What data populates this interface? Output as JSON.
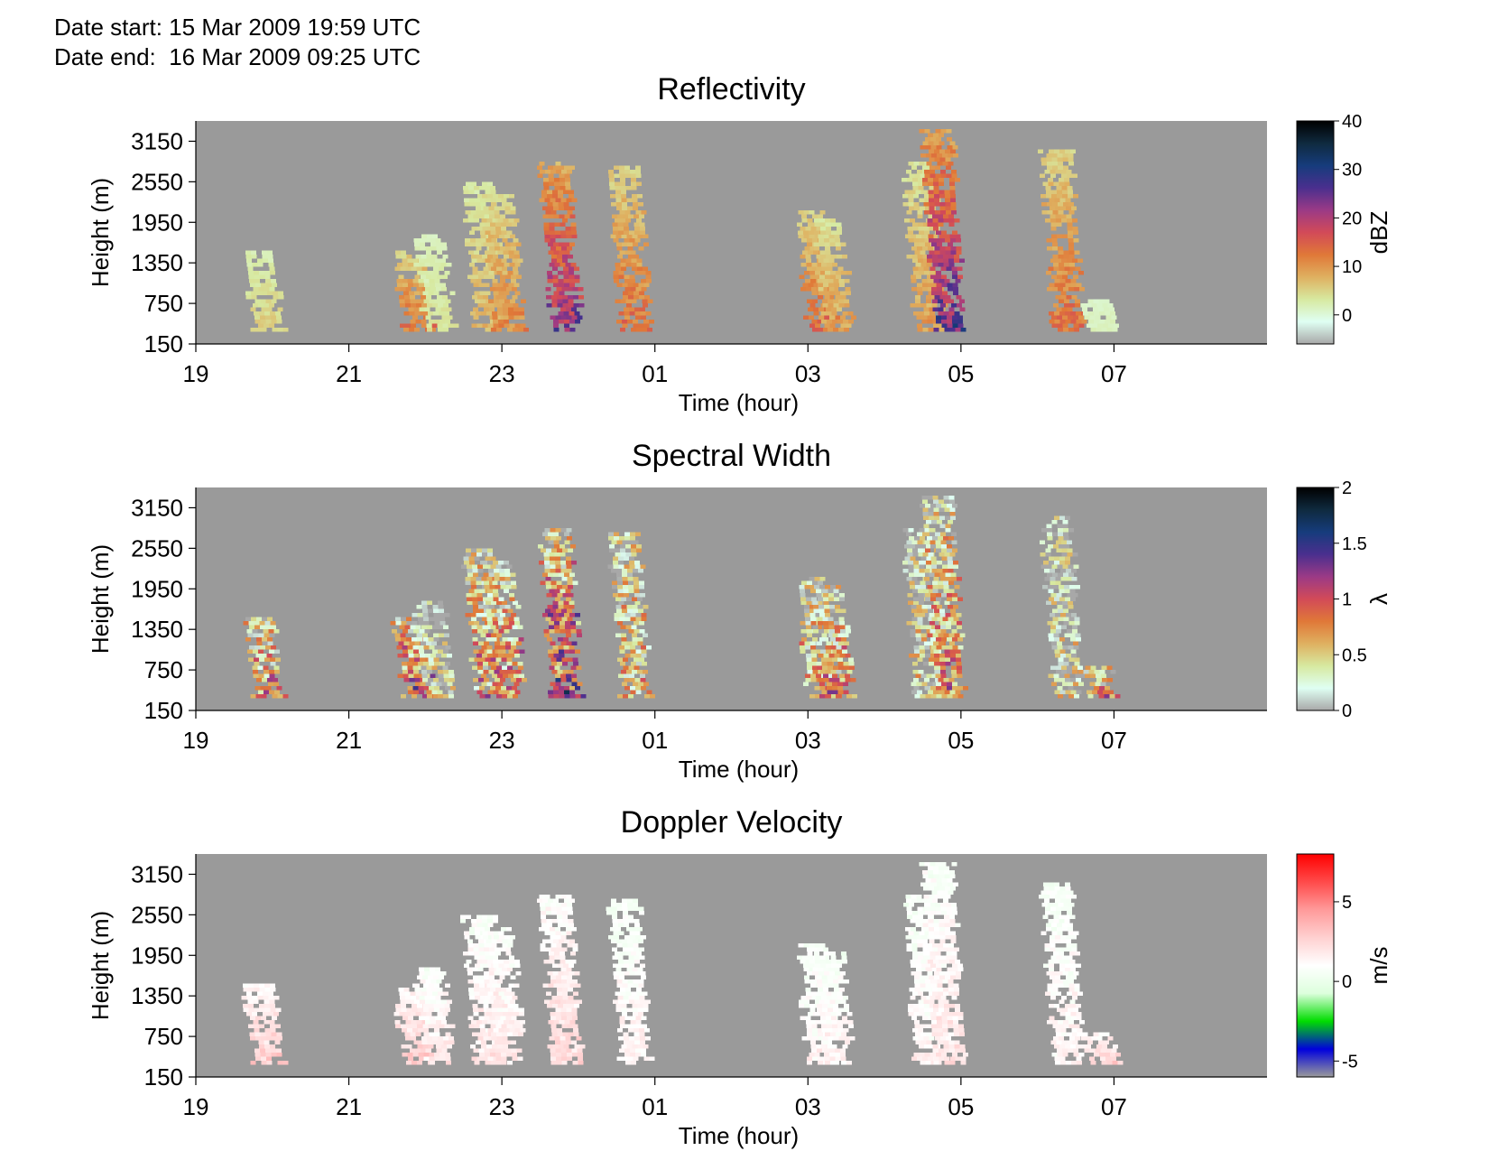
{
  "header": {
    "start_label": "Date start:",
    "start_value": "15 Mar 2009 19:59 UTC",
    "end_label": "Date end:",
    "end_value": "16 Mar 2009 09:25 UTC"
  },
  "chart_data": [
    {
      "type": "heatmap",
      "title": "Reflectivity",
      "xlabel": "Time (hour)",
      "ylabel": "Height (m)",
      "x_range_hours": [
        19.0,
        33.0
      ],
      "y_range_m": [
        150,
        3450
      ],
      "x_ticks": [
        "19",
        "21",
        "23",
        "01",
        "03",
        "05",
        "07"
      ],
      "y_ticks": [
        "150",
        "750",
        "1350",
        "1950",
        "2550",
        "3150"
      ],
      "background_color": "#9a9a9a",
      "colorbar": {
        "label": "dBZ",
        "range": [
          -6,
          40
        ],
        "ticks": [
          "40",
          "30",
          "20",
          "10",
          "0"
        ],
        "stops": [
          "#a8a8a8",
          "#dffff3",
          "#d7e9a0",
          "#dfb060",
          "#e07838",
          "#d24a58",
          "#9b3a86",
          "#4a2f8e",
          "#163c7c",
          "#0f2a3f",
          "#000000"
        ]
      },
      "echo_columns": [
        {
          "t": 19.82,
          "top": 1500,
          "core": 6
        },
        {
          "t": 21.78,
          "top": 1500,
          "core": 14
        },
        {
          "t": 22.05,
          "top": 1750,
          "core": 4
        },
        {
          "t": 22.7,
          "top": 2500,
          "core": 8
        },
        {
          "t": 22.95,
          "top": 2350,
          "core": 12
        },
        {
          "t": 23.7,
          "top": 2800,
          "core": 24
        },
        {
          "t": 24.6,
          "top": 2750,
          "core": 14
        },
        {
          "t": 27.05,
          "top": 2100,
          "core": 14
        },
        {
          "t": 27.25,
          "top": 2000,
          "core": 10
        },
        {
          "t": 28.45,
          "top": 2850,
          "core": 10
        },
        {
          "t": 28.7,
          "top": 3300,
          "core": 26
        },
        {
          "t": 30.25,
          "top": 3000,
          "core": 14
        },
        {
          "t": 30.75,
          "top": 800,
          "core": 2
        }
      ]
    },
    {
      "type": "heatmap",
      "title": "Spectral Width",
      "xlabel": "Time (hour)",
      "ylabel": "Height (m)",
      "x_range_hours": [
        19.0,
        33.0
      ],
      "y_range_m": [
        150,
        3450
      ],
      "x_ticks": [
        "19",
        "21",
        "23",
        "01",
        "03",
        "05",
        "07"
      ],
      "y_ticks": [
        "150",
        "750",
        "1350",
        "1950",
        "2550",
        "3150"
      ],
      "background_color": "#9a9a9a",
      "colorbar": {
        "label": "λ",
        "range": [
          0,
          2
        ],
        "ticks": [
          "2",
          "1.5",
          "1",
          "0.5",
          "0"
        ],
        "stops": [
          "#a8a8a8",
          "#dffff3",
          "#d7e9a0",
          "#dfb060",
          "#e07838",
          "#d24a58",
          "#9b3a86",
          "#4a2f8e",
          "#163c7c",
          "#0f2a3f",
          "#000000"
        ]
      },
      "echo_columns": [
        {
          "t": 19.82,
          "top": 1500,
          "core": 0.9
        },
        {
          "t": 21.78,
          "top": 1500,
          "core": 1.1
        },
        {
          "t": 22.05,
          "top": 1750,
          "core": 0.3
        },
        {
          "t": 22.7,
          "top": 2500,
          "core": 0.8
        },
        {
          "t": 22.95,
          "top": 2350,
          "core": 0.9
        },
        {
          "t": 23.7,
          "top": 2800,
          "core": 1.2
        },
        {
          "t": 24.6,
          "top": 2750,
          "core": 0.6
        },
        {
          "t": 27.05,
          "top": 2100,
          "core": 0.7
        },
        {
          "t": 27.25,
          "top": 2000,
          "core": 0.8
        },
        {
          "t": 28.45,
          "top": 2850,
          "core": 0.4
        },
        {
          "t": 28.7,
          "top": 3300,
          "core": 0.8
        },
        {
          "t": 30.25,
          "top": 3000,
          "core": 0.3
        },
        {
          "t": 30.75,
          "top": 800,
          "core": 0.9
        }
      ]
    },
    {
      "type": "heatmap",
      "title": "Doppler Velocity",
      "xlabel": "Time (hour)",
      "ylabel": "Height (m)",
      "x_range_hours": [
        19.0,
        33.0
      ],
      "y_range_m": [
        150,
        3450
      ],
      "x_ticks": [
        "19",
        "21",
        "23",
        "01",
        "03",
        "05",
        "07"
      ],
      "y_ticks": [
        "150",
        "750",
        "1350",
        "1950",
        "2550",
        "3150"
      ],
      "background_color": "#9a9a9a",
      "colorbar": {
        "label": "m/s",
        "range": [
          -6,
          8
        ],
        "ticks": [
          "5",
          "0",
          "-5"
        ],
        "stops": [
          "#9a9a9a",
          "#0000dd",
          "#00dd00",
          "#ddffdd",
          "#ffffff",
          "#ffd0d0",
          "#ff9a9a",
          "#ff4a4a",
          "#ff0000"
        ]
      },
      "echo_columns": [
        {
          "t": 19.82,
          "top": 1500,
          "core": 3
        },
        {
          "t": 21.78,
          "top": 1500,
          "core": 3
        },
        {
          "t": 22.05,
          "top": 1750,
          "core": 2
        },
        {
          "t": 22.7,
          "top": 2500,
          "core": 2
        },
        {
          "t": 22.95,
          "top": 2350,
          "core": 2
        },
        {
          "t": 23.7,
          "top": 2800,
          "core": 2.5
        },
        {
          "t": 24.6,
          "top": 2750,
          "core": 1.5
        },
        {
          "t": 27.05,
          "top": 2100,
          "core": 1.5
        },
        {
          "t": 27.25,
          "top": 2000,
          "core": 1.5
        },
        {
          "t": 28.45,
          "top": 2850,
          "core": 1.5
        },
        {
          "t": 28.7,
          "top": 3300,
          "core": 2
        },
        {
          "t": 30.25,
          "top": 3000,
          "core": 1.5
        },
        {
          "t": 30.75,
          "top": 800,
          "core": 3
        }
      ]
    }
  ]
}
